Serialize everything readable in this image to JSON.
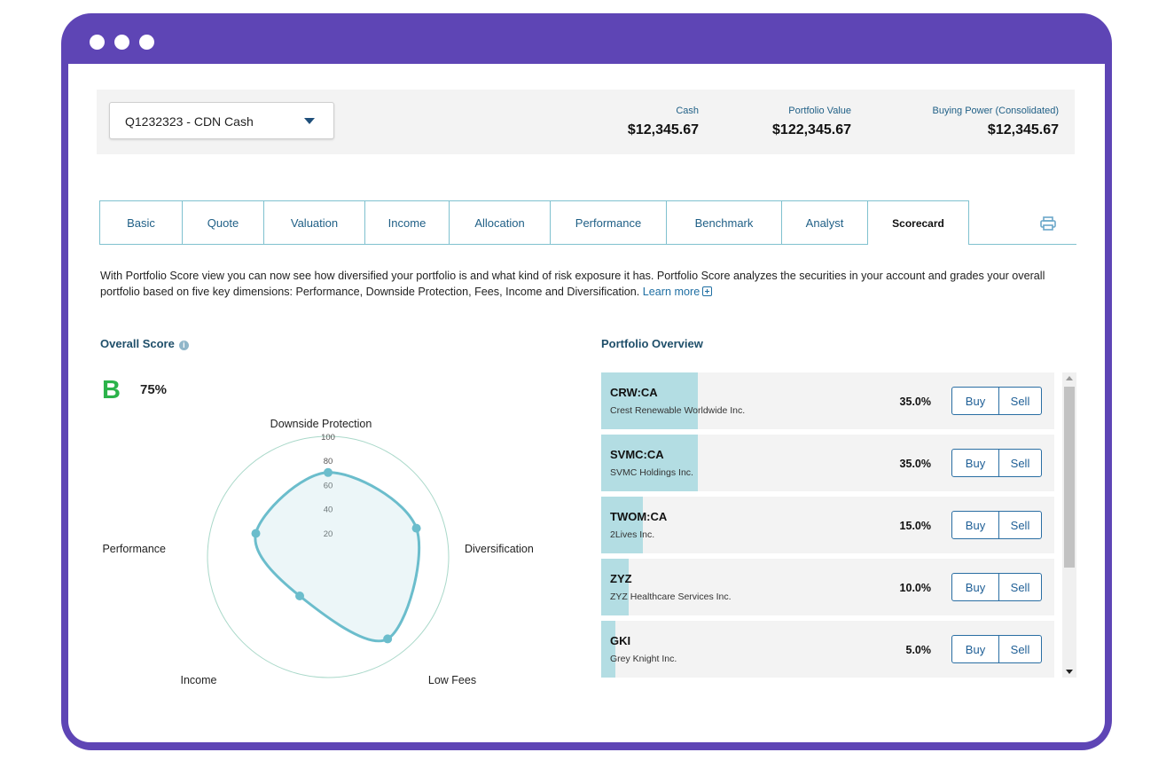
{
  "account": {
    "selected": "Q1232323 - CDN Cash",
    "stats": [
      {
        "label": "Cash",
        "value": "$12,345.67"
      },
      {
        "label": "Portfolio Value",
        "value": "$122,345.67"
      },
      {
        "label": "Buying Power (Consolidated)",
        "value": "$12,345.67"
      }
    ]
  },
  "tabs": [
    "Basic",
    "Quote",
    "Valuation",
    "Income",
    "Allocation",
    "Performance",
    "Benchmark",
    "Analyst",
    "Scorecard"
  ],
  "active_tab": "Scorecard",
  "intro": {
    "text": "With Portfolio Score view you can now see how diversified your portfolio is and what kind of risk exposure it has. Portfolio Score analyzes the securities in your account and grades your overall portfolio based on five key dimensions: Performance, Downside Protection, Fees, Income and Diversification.",
    "link": "Learn more"
  },
  "overall": {
    "title": "Overall Score",
    "grade": "B",
    "percent": "75%",
    "grade_color": "#2bb34a"
  },
  "radar": {
    "axes": [
      "Downside Protection",
      "Diversification",
      "Low Fees",
      "Income",
      "Performance"
    ],
    "values": [
      70,
      77,
      84,
      40,
      63
    ],
    "ticks": [
      "20",
      "40",
      "60",
      "80",
      "100"
    ],
    "max": 100
  },
  "overview": {
    "title": "Portfolio Overview",
    "buy_label": "Buy",
    "sell_label": "Sell",
    "holdings": [
      {
        "symbol": "CRW:CA",
        "name": "Crest Renewable Worldwide Inc.",
        "weight": "35.0%",
        "fraction": 0.35
      },
      {
        "symbol": "SVMC:CA",
        "name": "SVMC Holdings Inc.",
        "weight": "35.0%",
        "fraction": 0.35
      },
      {
        "symbol": "TWOM:CA",
        "name": "2Lives Inc.",
        "weight": "15.0%",
        "fraction": 0.15
      },
      {
        "symbol": "ZYZ",
        "name": "ZYZ Healthcare Services Inc.",
        "weight": "10.0%",
        "fraction": 0.1
      },
      {
        "symbol": "GKI",
        "name": "Grey Knight Inc.",
        "weight": "5.0%",
        "fraction": 0.05
      }
    ]
  },
  "colors": {
    "frame": "#5e45b5",
    "accent": "#1f5f86",
    "radar_line": "#6bbdcc",
    "bar": "#b3dde3"
  }
}
